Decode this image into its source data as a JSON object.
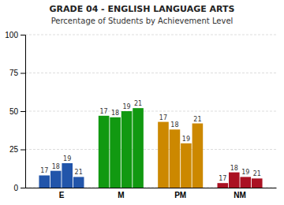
{
  "chart_data": {
    "type": "bar",
    "title": "GRADE 04 - ENGLISH LANGUAGE ARTS",
    "subtitle": "Percentage of Students by Achievement Level",
    "categories": [
      "E",
      "M",
      "PM",
      "NM"
    ],
    "colors": [
      "#2255aa",
      "#119911",
      "#cc8800",
      "#aa1122"
    ],
    "series": [
      {
        "name": "17",
        "values": [
          8,
          47,
          43,
          3
        ]
      },
      {
        "name": "18",
        "values": [
          11,
          46,
          38,
          10
        ]
      },
      {
        "name": "19",
        "values": [
          16,
          50,
          29,
          7
        ]
      },
      {
        "name": "21",
        "values": [
          7,
          52,
          42,
          6
        ]
      }
    ],
    "ylim": [
      0,
      100
    ],
    "yticks": [
      0,
      25,
      50,
      75,
      100
    ],
    "grid": true
  }
}
